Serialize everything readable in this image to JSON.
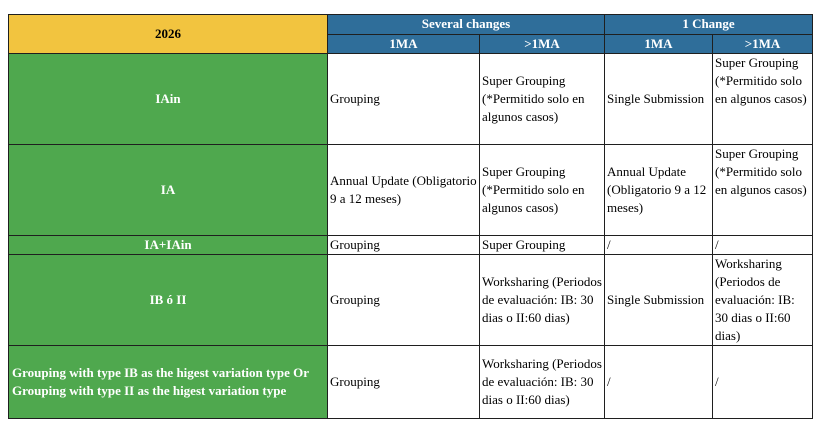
{
  "header": {
    "year": "2026",
    "groups": [
      "Several changes",
      "1 Change"
    ],
    "subheaders": [
      "1MA",
      ">1MA",
      "1MA",
      ">1MA"
    ]
  },
  "rows": [
    {
      "label": "IAin",
      "cells": [
        "Grouping",
        "Super Grouping (*Permitido solo en algunos casos)",
        "Single Submission",
        "Super Grouping (*Permitido solo en algunos casos)"
      ]
    },
    {
      "label": "IA",
      "cells": [
        "Annual Update (Obligatorio 9 a 12 meses)",
        "Super Grouping (*Permitido solo en algunos casos)",
        "Annual Update (Obligatorio 9 a 12 meses)",
        "Super Grouping (*Permitido solo en algunos casos)"
      ]
    },
    {
      "label": "IA+IAin",
      "cells": [
        "Grouping",
        "Super Grouping",
        "/",
        "/"
      ]
    },
    {
      "label": "IB ó II",
      "cells": [
        "Grouping",
        "Worksharing (Periodos de evaluación: IB: 30 dias o II:60 dias)",
        "Single Submission",
        "Worksharing (Periodos de evaluación: IB: 30 dias o II:60 dias)"
      ]
    },
    {
      "label": "Grouping with type IB as the higest variation type Or Grouping with type II as the higest variation type",
      "cells": [
        "Grouping",
        "Worksharing (Periodos de evaluación: IB: 30 dias o II:60 dias)",
        "/",
        "/"
      ]
    }
  ]
}
